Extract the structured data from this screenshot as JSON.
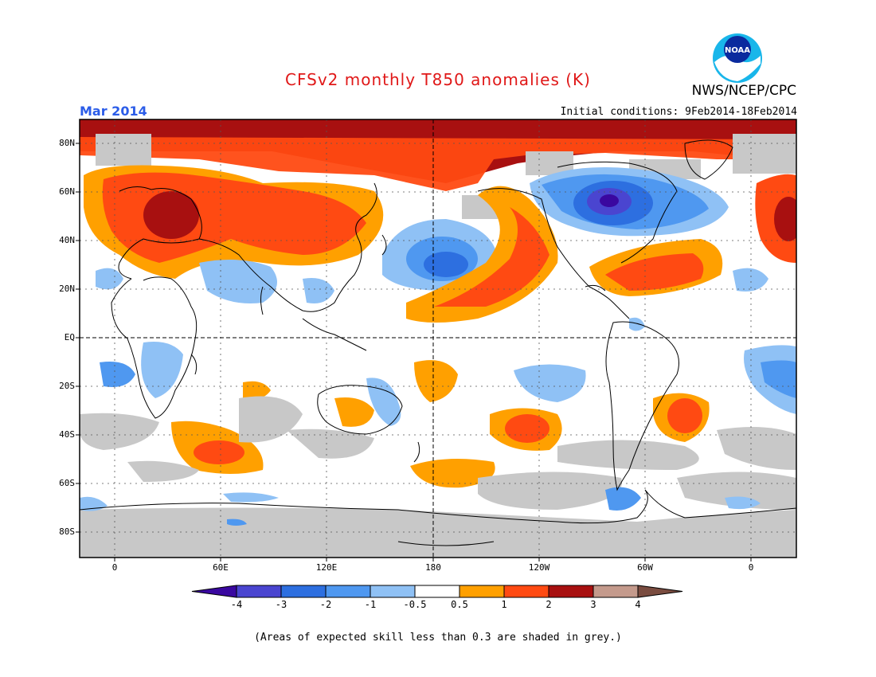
{
  "header": {
    "title": "CFSv2 monthly T850 anomalies (K)",
    "month": "Mar 2014",
    "initial_conditions": "Initial conditions: 9Feb2014-18Feb2014",
    "agency": "NWS/NCEP/CPC",
    "logo_text": "NOAA"
  },
  "map": {
    "lat_labels": [
      "80N",
      "60N",
      "40N",
      "20N",
      "EQ",
      "20S",
      "40S",
      "60S",
      "80S"
    ],
    "lon_labels": [
      "0",
      "60E",
      "120E",
      "180",
      "120W",
      "60W",
      "0"
    ],
    "projection": "cylindrical equidistant, 20W to 20E wrapped (Greenwich-centered plus 180 dateline)",
    "grid": true
  },
  "colorbar": {
    "labels": [
      "-4",
      "-3",
      "-2",
      "-1",
      "-0.5",
      "0.5",
      "1",
      "2",
      "3",
      "4"
    ],
    "colors": [
      "#3a08a0",
      "#4a45d0",
      "#2d6fe0",
      "#4f98f0",
      "#8fc1f5",
      "#ffffff",
      "#ffa000",
      "#ff4a12",
      "#a81010",
      "#c49a8c",
      "#7a4c40"
    ],
    "skill_grey": "#c8c8c8"
  },
  "footnote": "(Areas of expected skill less than 0.3 are shaded in grey.)"
}
